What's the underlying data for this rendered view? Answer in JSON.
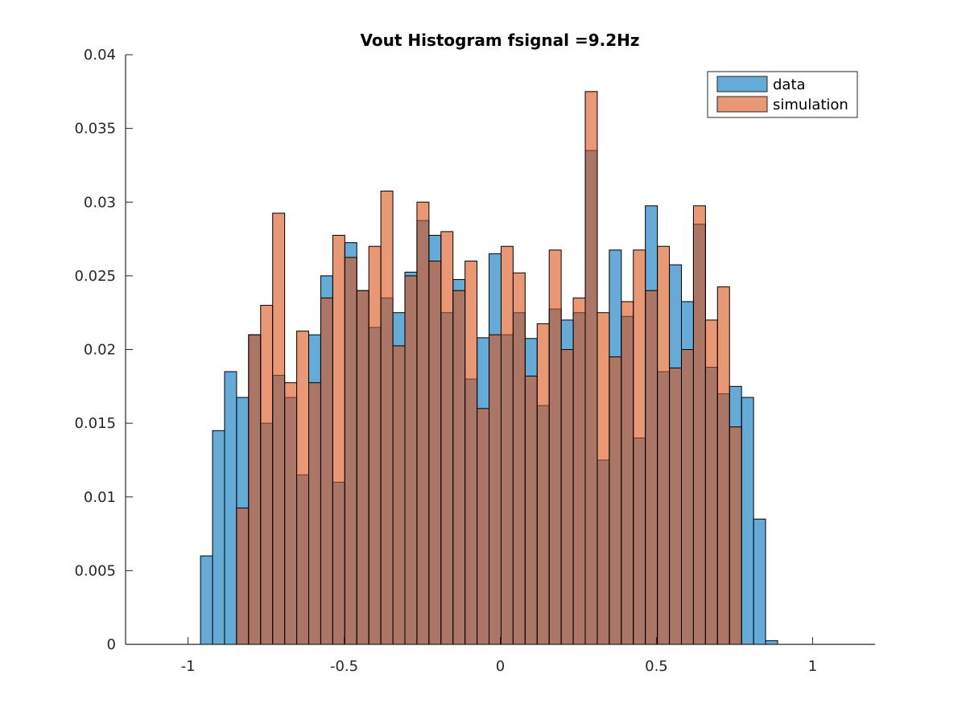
{
  "chart_data": {
    "type": "bar",
    "title": "Vout Histogram fsignal =9.2Hz",
    "xlabel": "",
    "ylabel": "",
    "xlim": [
      -1.2,
      1.2
    ],
    "ylim": [
      0,
      0.04
    ],
    "bin_start": -0.96,
    "bin_width": 0.0385,
    "legend_position": "top-right",
    "xticks": [
      -1,
      -0.5,
      0,
      0.5,
      1
    ],
    "xtick_labels": [
      "-1",
      "-0.5",
      "0",
      "0.5",
      "1"
    ],
    "yticks": [
      0,
      0.005,
      0.01,
      0.015,
      0.02,
      0.025,
      0.03,
      0.035,
      0.04
    ],
    "ytick_labels": [
      "0",
      "0.005",
      "0.01",
      "0.015",
      "0.02",
      "0.025",
      "0.03",
      "0.035",
      "0.04"
    ],
    "series": [
      {
        "name": "data",
        "color": "#0072BD",
        "values": [
          0.006,
          0.0145,
          0.0185,
          0.01675,
          0.021,
          0.015,
          0.01825,
          0.01675,
          0.0115,
          0.021,
          0.025,
          0.011,
          0.02725,
          0.024,
          0.0215,
          0.0235,
          0.0225,
          0.02525,
          0.02875,
          0.02775,
          0.0225,
          0.02475,
          0.018,
          0.0208,
          0.0265,
          0.021,
          0.0225,
          0.02075,
          0.0162,
          0.02275,
          0.022,
          0.0225,
          0.0335,
          0.0125,
          0.02675,
          0.02225,
          0.014,
          0.02975,
          0.0185,
          0.02575,
          0.02325,
          0.0285,
          0.0188,
          0.017,
          0.0175,
          0.01675,
          0.0085,
          0.00025
        ]
      },
      {
        "name": "simulation",
        "color": "#D95319",
        "values": [
          0,
          0,
          0,
          0.00925,
          0.021,
          0.023,
          0.02925,
          0.01775,
          0.02125,
          0.01775,
          0.0235,
          0.02775,
          0.02625,
          0.024,
          0.027,
          0.03075,
          0.02025,
          0.025,
          0.03,
          0.026,
          0.028,
          0.024,
          0.026,
          0.016,
          0.021,
          0.027,
          0.0252,
          0.0182,
          0.02175,
          0.02675,
          0.02,
          0.0235,
          0.0375,
          0.0225,
          0.0195,
          0.02325,
          0.02675,
          0.024,
          0.027,
          0.01875,
          0.02,
          0.02975,
          0.022,
          0.02425,
          0.01475,
          0,
          0,
          0
        ]
      }
    ]
  }
}
